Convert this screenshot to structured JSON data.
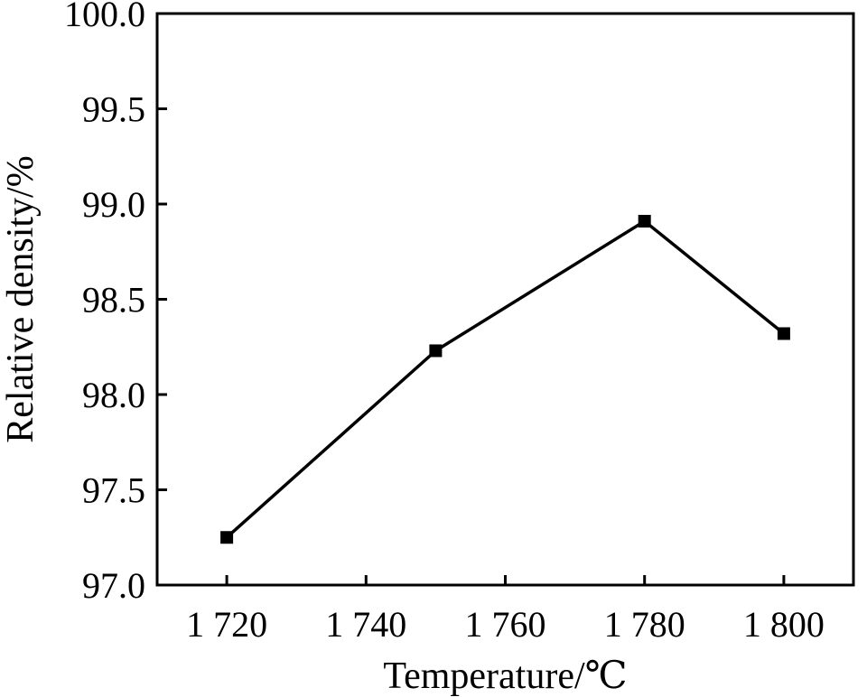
{
  "chart_data": {
    "type": "line",
    "title": "",
    "xlabel": "Temperature/℃",
    "ylabel": "Relative density/%",
    "x": [
      1720,
      1750,
      1780,
      1800
    ],
    "series": [
      {
        "values": [
          97.25,
          98.23,
          98.91,
          98.32
        ]
      }
    ],
    "xlim": [
      1710,
      1810
    ],
    "ylim": [
      97.0,
      100.0
    ],
    "xticks": [
      1720,
      1740,
      1760,
      1780,
      1800
    ],
    "xtick_labels": [
      "1 720",
      "1 740",
      "1 760",
      "1 780",
      "1 800"
    ],
    "yticks": [
      97.0,
      97.5,
      98.0,
      98.5,
      99.0,
      99.5,
      100.0
    ],
    "ytick_labels": [
      "97.0",
      "97.5",
      "98.0",
      "98.5",
      "99.0",
      "99.5",
      "100.0"
    ],
    "grid": false,
    "legend": "none",
    "marker": "square",
    "line_color": "#000000"
  }
}
